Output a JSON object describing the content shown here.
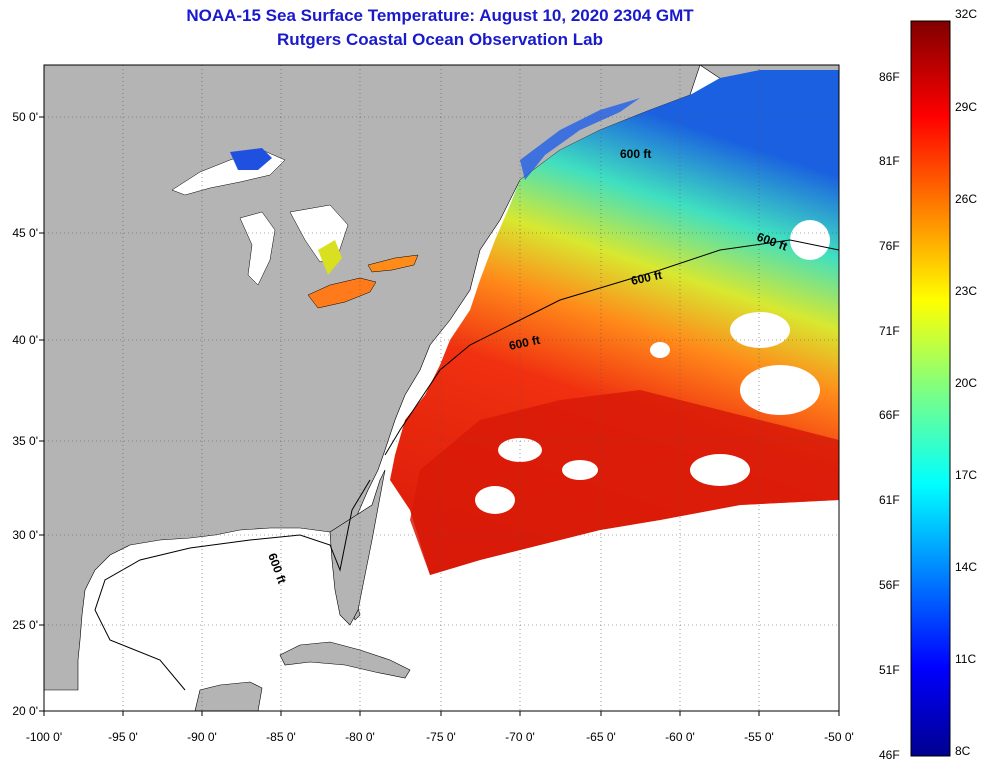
{
  "header": {
    "title": "NOAA-15 Sea Surface Temperature:  August 10, 2020 2304 GMT",
    "subtitle": "Rutgers Coastal Ocean Observation Lab"
  },
  "axes": {
    "lon_labels": [
      "-100 0'",
      "-95 0'",
      "-90 0'",
      "-85 0'",
      "-80 0'",
      "-75 0'",
      "-70 0'",
      "-65 0'",
      "-60 0'",
      "-55 0'",
      "-50 0'"
    ],
    "lat_labels": [
      "50 0'",
      "45 0'",
      "40 0'",
      "35 0'",
      "30 0'",
      "25 0'",
      "20 0'"
    ]
  },
  "contour_label": "600 ft",
  "colorbar": {
    "celsius": [
      "32C",
      "29C",
      "26C",
      "23C",
      "20C",
      "17C",
      "14C",
      "11C",
      "8C"
    ],
    "fahrenheit": [
      "86F",
      "81F",
      "76F",
      "71F",
      "66F",
      "61F",
      "56F",
      "51F",
      "46F"
    ]
  },
  "colors": {
    "land": "#b4b4b4",
    "title": "#1a1acc",
    "warm": "#e8200c",
    "cold": "#1010a0"
  }
}
